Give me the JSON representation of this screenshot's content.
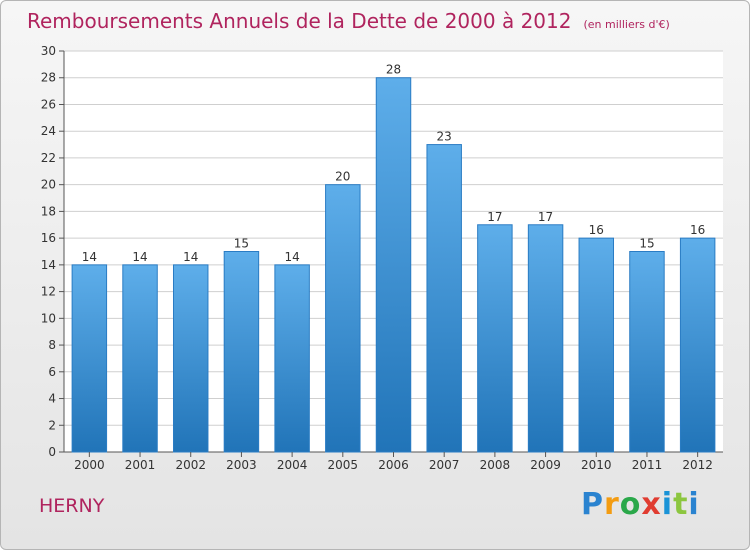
{
  "chart_data": {
    "type": "bar",
    "title": "Remboursements Annuels de la Dette de 2000 à 2012",
    "subtitle": "(en milliers d'€)",
    "categories": [
      "2000",
      "2001",
      "2002",
      "2003",
      "2004",
      "2005",
      "2006",
      "2007",
      "2008",
      "2009",
      "2010",
      "2011",
      "2012"
    ],
    "values": [
      14,
      14,
      14,
      15,
      14,
      20,
      28,
      23,
      17,
      17,
      16,
      15,
      16
    ],
    "ylim": [
      0,
      30
    ],
    "yticks": [
      0,
      2,
      4,
      6,
      8,
      10,
      12,
      14,
      16,
      18,
      20,
      22,
      24,
      26,
      28,
      30
    ],
    "xlabel": "",
    "ylabel": "",
    "grid": true,
    "bar_color": "#3a8fd6",
    "bar_color_light": "#5eaeea",
    "bar_color_dark": "#2174b8"
  },
  "footer": {
    "commune": "HERNY",
    "brand_letters": [
      "P",
      "r",
      "o",
      "x",
      "i",
      "t",
      "i"
    ]
  },
  "colors": {
    "title": "#b0245e",
    "grid": "#cfcfcf"
  }
}
